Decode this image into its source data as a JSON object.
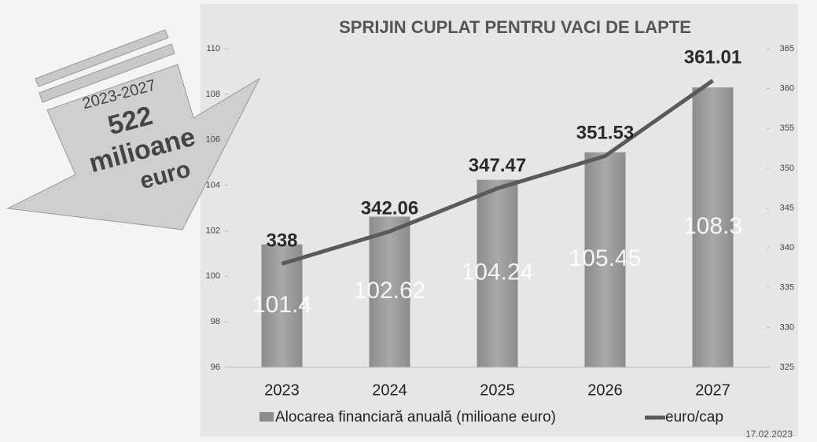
{
  "chart_data": {
    "type": "bar_line",
    "title": "SPRIJIN CUPLAT PENTRU VACI DE LAPTE",
    "categories": [
      "2023",
      "2024",
      "2025",
      "2026",
      "2027"
    ],
    "series": [
      {
        "name": "Alocarea financiară anuală (milioane euro)",
        "color": "#8c8c8c",
        "values": [
          101.4,
          102.62,
          104.24,
          105.45,
          108.3
        ]
      },
      {
        "name": "euro/cap",
        "color": "#5a5a5a",
        "axis": "y2",
        "values": [
          338,
          342.06,
          347.47,
          351.53,
          361.01
        ]
      }
    ],
    "ylim": [
      96,
      110
    ],
    "yticks": [
      96,
      98,
      100,
      102,
      104,
      106,
      108,
      110
    ],
    "y2lim": [
      325,
      365
    ],
    "y2ticks": [
      325,
      330,
      335,
      340,
      345,
      350,
      355,
      360,
      365
    ],
    "annotations": [
      "2023-2027",
      "522",
      "milioane",
      "euro"
    ],
    "date": "17.02.2023"
  }
}
